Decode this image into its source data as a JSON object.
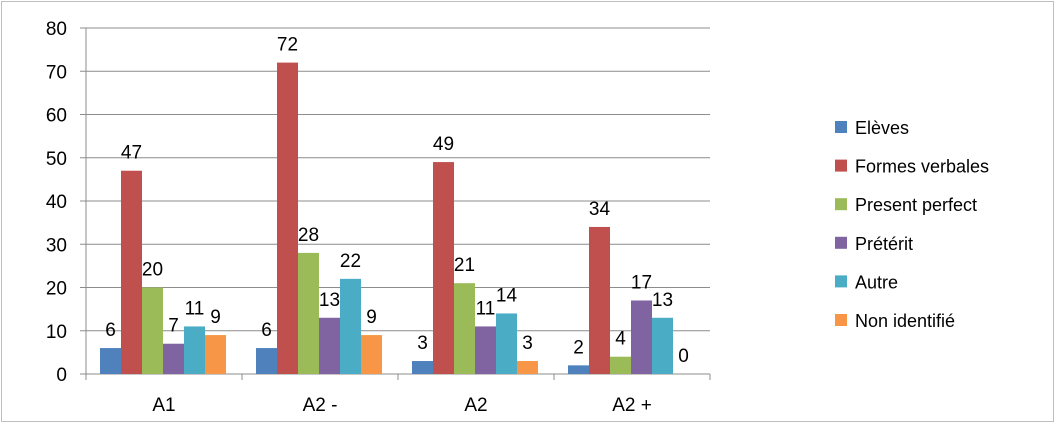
{
  "chart_data": {
    "type": "bar",
    "title": "",
    "xlabel": "",
    "ylabel": "",
    "ylim": [
      0,
      80
    ],
    "yticks": [
      0,
      10,
      20,
      30,
      40,
      50,
      60,
      70,
      80
    ],
    "grid": "horizontal",
    "legend_position": "right",
    "categories": [
      "A1",
      "A2 -",
      "A2",
      "A2 +"
    ],
    "series": [
      {
        "name": "Elèves",
        "color": "#4f81bd",
        "values": [
          6,
          6,
          3,
          2
        ]
      },
      {
        "name": "Formes verbales",
        "color": "#c0504d",
        "values": [
          47,
          72,
          49,
          34
        ]
      },
      {
        "name": "Present perfect",
        "color": "#9bbb59",
        "values": [
          20,
          28,
          21,
          4
        ]
      },
      {
        "name": "Prétérit",
        "color": "#8064a2",
        "values": [
          7,
          13,
          11,
          17
        ]
      },
      {
        "name": "Autre",
        "color": "#4bacc6",
        "values": [
          11,
          22,
          14,
          13
        ]
      },
      {
        "name": "Non identifié",
        "color": "#f79646",
        "values": [
          9,
          9,
          3,
          0
        ]
      }
    ]
  }
}
